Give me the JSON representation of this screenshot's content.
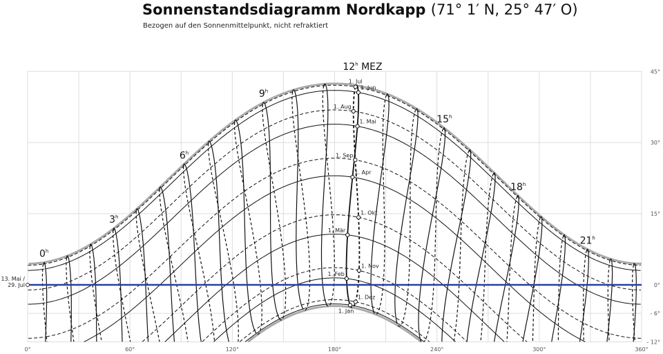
{
  "header": {
    "title": "Sonnenstandsdiagramm Nordkapp",
    "title_coords": "(71° 1′ N, 25° 47′ O)",
    "subtitle": "Bezogen auf den Sonnenmittelpunkt, nicht refraktiert"
  },
  "chart_data": {
    "type": "line",
    "title": "Sonnenstandsdiagramm Nordkapp (71° 1′ N, 25° 47′ O)",
    "subtitle": "Bezogen auf den Sonnenmittelpunkt, nicht refraktiert",
    "latitude_deg": 71.0167,
    "longitude_deg": 25.7833,
    "timezone": "MEZ",
    "timezone_offset_h": 1,
    "xlim": [
      0,
      360
    ],
    "ylim": [
      -12,
      45
    ],
    "x_ticks": [
      {
        "value": 0,
        "label": "0°"
      },
      {
        "value": 60,
        "label": "60°"
      },
      {
        "value": 120,
        "label": "120°"
      },
      {
        "value": 180,
        "label": "180°"
      },
      {
        "value": 240,
        "label": "240°"
      },
      {
        "value": 300,
        "label": "300°"
      },
      {
        "value": 360,
        "label": "360°"
      }
    ],
    "y_ticks": [
      {
        "value": 45,
        "label": "45°"
      },
      {
        "value": 30,
        "label": "30°"
      },
      {
        "value": 15,
        "label": "15°"
      },
      {
        "value": 0,
        "label": "0°"
      },
      {
        "value": -6,
        "label": "- 6°"
      },
      {
        "value": -12,
        "label": "- 12°"
      }
    ],
    "grid_x_step": 30,
    "grid": true,
    "horizon_color": "#2b3fa0",
    "horizon_label": "13. Mai / 29. Jul",
    "hour_labels": [
      {
        "hour": 0,
        "label": "0",
        "sup": "h"
      },
      {
        "hour": 3,
        "label": "3",
        "sup": "h"
      },
      {
        "hour": 6,
        "label": "6",
        "sup": "h"
      },
      {
        "hour": 9,
        "label": "9",
        "sup": "h"
      },
      {
        "hour": 12,
        "label": "12",
        "sup": "h",
        "suffix": " MEZ"
      },
      {
        "hour": 15,
        "label": "15",
        "sup": "h"
      },
      {
        "hour": 18,
        "label": "18",
        "sup": "h"
      },
      {
        "hour": 21,
        "label": "21",
        "sup": "h"
      }
    ],
    "date_labels": [
      {
        "month": 1,
        "label": "1. Jan"
      },
      {
        "month": 2,
        "label": "1. Feb"
      },
      {
        "month": 3,
        "label": "1. Mär"
      },
      {
        "month": 4,
        "label": "1. Apr"
      },
      {
        "month": 5,
        "label": "1. Mai"
      },
      {
        "month": 6,
        "label": "1. Jun"
      },
      {
        "month": 7,
        "label": "1. Jul"
      },
      {
        "month": 8,
        "label": "1. Aug"
      },
      {
        "month": 9,
        "label": "1. Sep"
      },
      {
        "month": 10,
        "label": "1. Okt"
      },
      {
        "month": 11,
        "label": "1. Nov"
      },
      {
        "month": 12,
        "label": "1. Dez"
      }
    ]
  }
}
